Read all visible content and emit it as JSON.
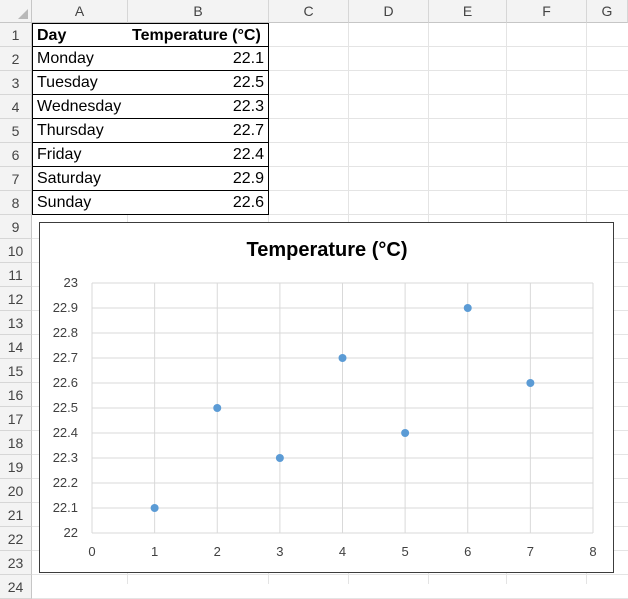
{
  "sheet": {
    "columns": [
      "A",
      "B",
      "C",
      "D",
      "E",
      "F",
      "G"
    ],
    "rows": [
      "1",
      "2",
      "3",
      "4",
      "5",
      "6",
      "7",
      "8",
      "9",
      "10",
      "11",
      "12",
      "13",
      "14",
      "15",
      "16",
      "17",
      "18",
      "19",
      "20",
      "21",
      "22",
      "23",
      "24"
    ],
    "header": {
      "day": "Day",
      "temp": "Temperature (°C)"
    },
    "table": [
      {
        "day": "Monday",
        "temp": "22.1"
      },
      {
        "day": "Tuesday",
        "temp": "22.5"
      },
      {
        "day": "Wednesday",
        "temp": "22.3"
      },
      {
        "day": "Thursday",
        "temp": "22.7"
      },
      {
        "day": "Friday",
        "temp": "22.4"
      },
      {
        "day": "Saturday",
        "temp": "22.9"
      },
      {
        "day": "Sunday",
        "temp": "22.6"
      }
    ]
  },
  "chart_data": {
    "type": "scatter",
    "title": "Temperature (°C)",
    "x": [
      1,
      2,
      3,
      4,
      5,
      6,
      7
    ],
    "y": [
      22.1,
      22.5,
      22.3,
      22.7,
      22.4,
      22.9,
      22.6
    ],
    "xlim": [
      0,
      8
    ],
    "ylim": [
      22,
      23
    ],
    "xticks": [
      0,
      1,
      2,
      3,
      4,
      5,
      6,
      7,
      8
    ],
    "yticks": [
      22,
      22.1,
      22.2,
      22.3,
      22.4,
      22.5,
      22.6,
      22.7,
      22.8,
      22.9,
      23
    ],
    "xlabel": "",
    "ylabel": "",
    "grid": true,
    "legend": "none",
    "marker_color": "#5b9bd5"
  }
}
